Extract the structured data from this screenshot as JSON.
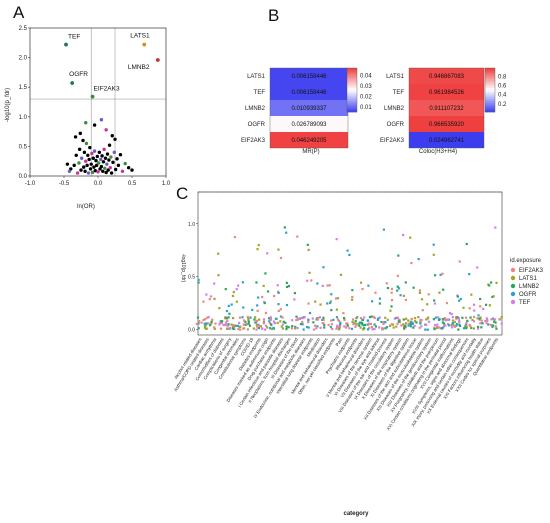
{
  "panels": {
    "a": "A",
    "b": "B",
    "c": "C"
  },
  "chart_data": [
    {
      "id": "volcano",
      "type": "scatter",
      "xlabel": "ln(OR)",
      "ylabel": "-log10(p_fdr)",
      "xlim": [
        -1.0,
        1.0
      ],
      "ylim": [
        0.0,
        2.5
      ],
      "xticks": [
        "-1.0",
        "-0.5",
        "0.0",
        "0.5",
        "1.0"
      ],
      "yticks": [
        "0.0",
        "0.5",
        "1.0",
        "1.5",
        "2.0",
        "2.5"
      ],
      "labelled_points": [
        {
          "label": "LATS1",
          "x": 0.68,
          "y": 2.22,
          "color": "#d98c1e"
        },
        {
          "label": "TEF",
          "x": -0.47,
          "y": 2.22,
          "color": "#1b7a5c"
        },
        {
          "label": "LMNB2",
          "x": 0.88,
          "y": 1.96,
          "color": "#c0392b"
        },
        {
          "label": "OGFR",
          "x": -0.38,
          "y": 1.57,
          "color": "#1b7a5c"
        },
        {
          "label": "EIF2AK3",
          "x": -0.08,
          "y": 1.34,
          "color": "#3a8f3a"
        }
      ],
      "cloud": [
        [
          -0.4,
          0.12
        ],
        [
          -0.35,
          0.18
        ],
        [
          -0.32,
          0.35
        ],
        [
          -0.3,
          0.05
        ],
        [
          -0.28,
          0.22
        ],
        [
          -0.27,
          0.45
        ],
        [
          -0.25,
          0.1
        ],
        [
          -0.24,
          0.3
        ],
        [
          -0.22,
          0.6
        ],
        [
          -0.21,
          0.15
        ],
        [
          -0.2,
          0.4
        ],
        [
          -0.19,
          0.08
        ],
        [
          -0.18,
          0.25
        ],
        [
          -0.17,
          0.55
        ],
        [
          -0.16,
          0.18
        ],
        [
          -0.15,
          0.35
        ],
        [
          -0.14,
          0.05
        ],
        [
          -0.13,
          0.28
        ],
        [
          -0.12,
          0.48
        ],
        [
          -0.11,
          0.12
        ],
        [
          -0.1,
          0.2
        ],
        [
          -0.09,
          0.38
        ],
        [
          -0.08,
          0.06
        ],
        [
          -0.07,
          0.3
        ],
        [
          -0.06,
          0.15
        ],
        [
          -0.05,
          0.42
        ],
        [
          -0.04,
          0.09
        ],
        [
          -0.03,
          0.26
        ],
        [
          -0.02,
          0.18
        ],
        [
          -0.01,
          0.33
        ],
        [
          0.0,
          0.07
        ],
        [
          0.01,
          0.22
        ],
        [
          0.02,
          0.4
        ],
        [
          0.03,
          0.12
        ],
        [
          0.04,
          0.28
        ],
        [
          0.05,
          0.16
        ],
        [
          0.06,
          0.34
        ],
        [
          0.07,
          0.08
        ],
        [
          0.08,
          0.24
        ],
        [
          0.09,
          0.45
        ],
        [
          0.1,
          0.13
        ],
        [
          0.11,
          0.3
        ],
        [
          0.12,
          0.06
        ],
        [
          0.13,
          0.2
        ],
        [
          0.14,
          0.37
        ],
        [
          0.15,
          0.1
        ],
        [
          0.16,
          0.27
        ],
        [
          0.17,
          0.52
        ],
        [
          0.18,
          0.14
        ],
        [
          0.19,
          0.32
        ],
        [
          0.2,
          0.05
        ],
        [
          0.22,
          0.23
        ],
        [
          0.24,
          0.4
        ],
        [
          0.26,
          0.11
        ],
        [
          0.28,
          0.29
        ],
        [
          0.3,
          0.18
        ],
        [
          0.33,
          0.36
        ],
        [
          0.36,
          0.08
        ],
        [
          0.4,
          0.21
        ],
        [
          0.45,
          0.14
        ],
        [
          -0.45,
          0.2
        ],
        [
          -0.42,
          0.08
        ],
        [
          0.5,
          0.1
        ],
        [
          -0.26,
          0.72
        ],
        [
          0.21,
          0.68
        ],
        [
          -0.05,
          0.86
        ],
        [
          0.12,
          0.78
        ],
        [
          -0.18,
          0.9
        ],
        [
          0.25,
          0.62
        ],
        [
          -0.33,
          0.66
        ],
        [
          0.05,
          0.95
        ]
      ],
      "cloud_colors": [
        "#000000",
        "#000000",
        "#000000",
        "#cc3399",
        "#3a8f3a",
        "#000000",
        "#000000",
        "#6a5acd",
        "#000000"
      ]
    },
    {
      "id": "heatmap_mr",
      "type": "heatmap",
      "xlabel": "MR(P)",
      "rows": [
        "LATS1",
        "TEF",
        "LMNB2",
        "OGFR",
        "EIF2AK3"
      ],
      "values": [
        0.006158446,
        0.006158446,
        0.010939337,
        0.026789093,
        0.046249205
      ],
      "labels": [
        "0.006158446",
        "0.006158446",
        "0.010939337",
        "0.026789093",
        "0.046249205"
      ],
      "colorbar": {
        "ticks": [
          "0.04",
          "0.03",
          "0.02",
          "0.01"
        ],
        "min": 0.005,
        "max": 0.047,
        "low": "#3b3bf0",
        "mid": "#ffffff",
        "high": "#ef3b3b"
      }
    },
    {
      "id": "heatmap_coloc",
      "type": "heatmap",
      "xlabel": "Coloc(H3+H4)",
      "rows": [
        "LATS1",
        "TEF",
        "LMNB2",
        "OGFR",
        "EIF2AK3"
      ],
      "values": [
        0.946867083,
        0.961984526,
        0.911107232,
        0.96653592,
        0.024962741
      ],
      "labels": [
        "0.946867083",
        "0.961984526",
        "0.911107232",
        "0.966535920",
        "0.024962741"
      ],
      "colorbar": {
        "ticks": [
          "0.8",
          "0.6",
          "0.4",
          "0.2"
        ],
        "min": 0.02,
        "max": 0.98,
        "low": "#3b3bf0",
        "mid": "#ffffff",
        "high": "#ef3b3b"
      }
    },
    {
      "id": "phewas",
      "type": "scatter",
      "ylabel": "-log10(p_fdr)",
      "xlabel": "category",
      "yticks": [
        "0.0",
        "0.5",
        "1.0"
      ],
      "ylim": [
        -0.05,
        1.3
      ],
      "threshold": 1.3,
      "legend": {
        "title": "id.exposure",
        "items": [
          {
            "name": "EIF2AK3",
            "color": "#e8897b"
          },
          {
            "name": "LATS1",
            "color": "#a3a52a"
          },
          {
            "name": "LMNB2",
            "color": "#2aa55a"
          },
          {
            "name": "OGFR",
            "color": "#2aa2d0"
          },
          {
            "name": "TEF",
            "color": "#d27ef0"
          }
        ]
      },
      "categories": [
        "Alcohol related diseases",
        "Asthma/COPD related diseases",
        "Cardiac arrhythmia",
        "Comorbidities of diabetes",
        "Complications of surgery",
        "Congenital anomalies",
        "Constitutional symptoms",
        "COVID-19",
        "Diabetes endpoints",
        "Diseases marked as autimmune origin",
        "Drug purchase endpoints",
        "I Certain infectious and parasitic diseases",
        "II Neoplasms, from hospital discharges",
        "III Diseases of the blood",
        "IV Endocrine, nutritional and metabolic diseases",
        "Interstitial lung disease endpoints",
        "Medication",
        "Mental and behavioural disorders",
        "Other, not yet classified endpoints",
        "Pain",
        "Psychiatric endpoints",
        "Rheuma endpoints",
        "V Mental and behavioural disorders",
        "VI Diseases of the nervous system",
        "VII Diseases of the eye and adnexa",
        "VIII Diseases of the ear and mastoid process",
        "IX Diseases of the circulatory system",
        "X Diseases of the respiratory system",
        "XI Diseases of the digestive system",
        "XII Diseases of the skin and subcutaneous tissue",
        "XIII Diseases of the musculoskeletal system",
        "XIV Diseases of the genitourinary system",
        "XV Pregnancy, childbirth and the puerperium",
        "XVI Certain conditions originating in the perinatal period",
        "XVII Congenital malformations",
        "XVIII Symptoms, signs and abnormal findings",
        "XIX Injury, poisoning and certain other consequences",
        "XX External causes of morbidity and mortality",
        "XXI Factors influencing health status",
        "XXII Codes for special purposes",
        "Quantitative endpoints"
      ]
    }
  ]
}
